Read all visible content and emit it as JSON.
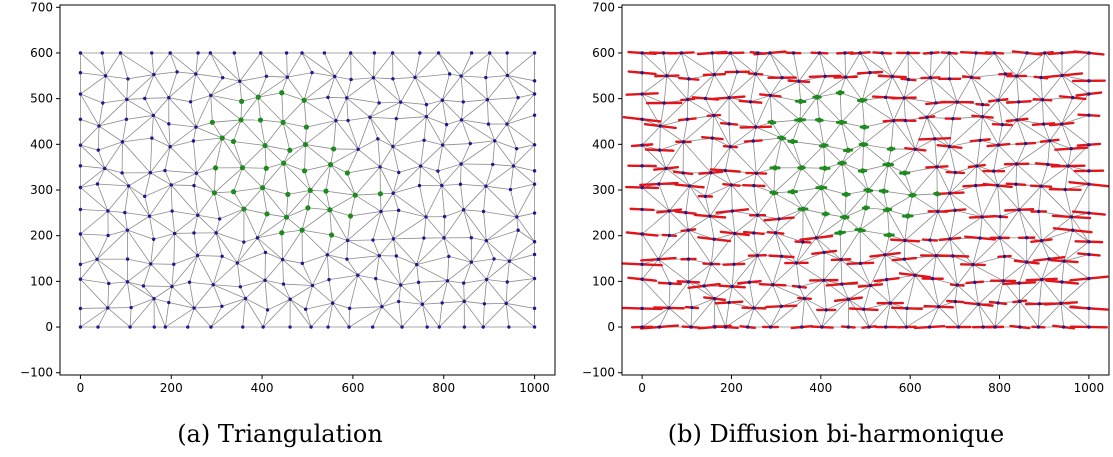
{
  "chart_data": [
    {
      "type": "scatter",
      "subtype": "triangulation-mesh",
      "caption": "(a) Triangulation",
      "xlim": [
        -45,
        1045
      ],
      "ylim": [
        -105,
        705
      ],
      "x_ticks": [
        0,
        200,
        400,
        600,
        800,
        1000
      ],
      "y_ticks": [
        -100,
        0,
        100,
        200,
        300,
        400,
        500,
        600,
        700
      ],
      "grid": false,
      "legend": "none",
      "mesh_nodes": {
        "x_range": [
          0,
          1000
        ],
        "y_range": [
          0,
          600
        ],
        "approx_spacing": 50,
        "color": "#1b1b8f",
        "edge_color": "#8c8c8c"
      },
      "highlighted_region": {
        "color": "#1f8a1f",
        "approx_x_range": [
          260,
          700
        ],
        "approx_y_range": [
          170,
          560
        ]
      }
    },
    {
      "type": "scatter",
      "subtype": "vector-field-on-mesh",
      "caption": "(b) Diffusion bi-harmonique",
      "xlim": [
        -45,
        1045
      ],
      "ylim": [
        -105,
        705
      ],
      "x_ticks": [
        0,
        200,
        400,
        600,
        800,
        1000
      ],
      "y_ticks": [
        -100,
        0,
        100,
        200,
        300,
        400,
        500,
        600,
        700
      ],
      "grid": false,
      "legend": "none",
      "mesh_nodes": {
        "x_range": [
          0,
          1000
        ],
        "y_range": [
          0,
          600
        ],
        "approx_spacing": 50,
        "color": "#1b1b8f",
        "edge_color": "#8c8c8c"
      },
      "highlighted_region": {
        "color": "#1f8a1f",
        "approx_x_range": [
          260,
          700
        ],
        "approx_y_range": [
          170,
          560
        ]
      },
      "vector_color": "#e0141b"
    }
  ]
}
